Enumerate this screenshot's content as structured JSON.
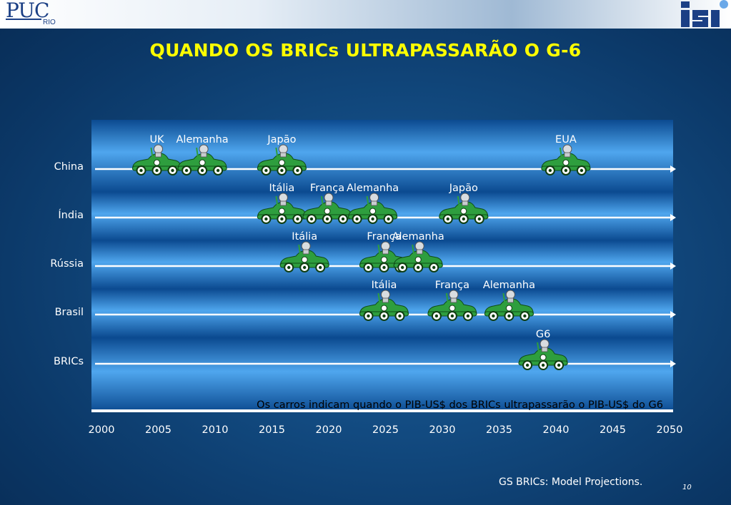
{
  "header": {
    "logo_left_main": "PUC",
    "logo_left_sub": "RIO",
    "logo_right": "ISI"
  },
  "title": "QUANDO OS BRICs ULTRAPASSARÃO O G-6",
  "chart_data": {
    "type": "timeline",
    "title": "QUANDO OS BRICs ULTRAPASSARÃO O G-6",
    "xlabel": "",
    "ylabel": "",
    "xlim": [
      2000,
      2050
    ],
    "x_ticks": [
      2000,
      2005,
      2010,
      2015,
      2020,
      2025,
      2030,
      2035,
      2040,
      2045,
      2050
    ],
    "annotation": "Os carros indicam quando o PIB-US$ dos BRICs ultrapassarão o PIB-US$ do G6",
    "rows": [
      {
        "name": "China",
        "events": [
          {
            "label": "UK",
            "year": 2005
          },
          {
            "label": "Alemanha",
            "year": 2009
          },
          {
            "label": "Japão",
            "year": 2016
          },
          {
            "label": "EUA",
            "year": 2041
          }
        ]
      },
      {
        "name": "Índia",
        "events": [
          {
            "label": "Itália",
            "year": 2016
          },
          {
            "label": "França",
            "year": 2020
          },
          {
            "label": "Alemanha",
            "year": 2024
          },
          {
            "label": "Japão",
            "year": 2032
          }
        ]
      },
      {
        "name": "Rússia",
        "events": [
          {
            "label": "Itália",
            "year": 2018
          },
          {
            "label": "França",
            "year": 2025
          },
          {
            "label": "Alemanha",
            "year": 2028
          }
        ]
      },
      {
        "name": "Brasil",
        "events": [
          {
            "label": "Itália",
            "year": 2025
          },
          {
            "label": "França",
            "year": 2031
          },
          {
            "label": "Alemanha",
            "year": 2036
          }
        ]
      },
      {
        "name": "BRICs",
        "events": [
          {
            "label": "G6",
            "year": 2039
          }
        ]
      }
    ],
    "colors": {
      "car": "#2e9e3e",
      "plot_band_light": "#4fa6ee",
      "plot_band_dark": "#0b4a90",
      "timeline": "#ffffff",
      "annotation_text": "#000000",
      "labels": "#ffffff",
      "title": "#ffff00"
    }
  },
  "footer": {
    "source": "GS BRICs: Model Projections.",
    "page_number": "10"
  }
}
